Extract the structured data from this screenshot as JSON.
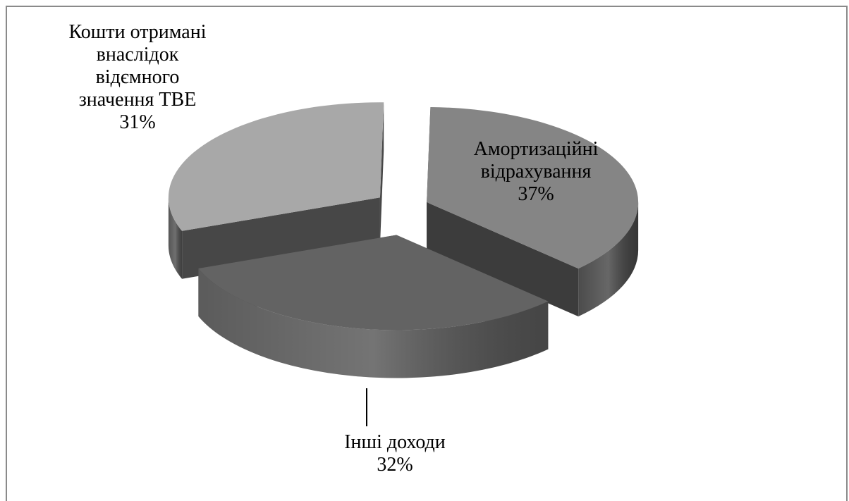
{
  "chart_data": {
    "type": "pie",
    "variant": "3d-exploded",
    "title": "",
    "slices": [
      {
        "label_lines": [
          "Амортизаційні",
          "відрахування"
        ],
        "value": 37,
        "value_label": "37%",
        "top_color": "#858585",
        "side_color": "#3c3c3c"
      },
      {
        "label_lines": [
          "Інші доходи"
        ],
        "value": 32,
        "value_label": "32%",
        "top_color": "#636363",
        "side_color": "#4d4d4d"
      },
      {
        "label_lines": [
          "Кошти отримані",
          "внаслідок",
          "відємного",
          "значення ТВЕ"
        ],
        "value": 31,
        "value_label": "31%",
        "top_color": "#a8a8a8",
        "side_color": "#474747"
      }
    ],
    "legend": "none"
  }
}
